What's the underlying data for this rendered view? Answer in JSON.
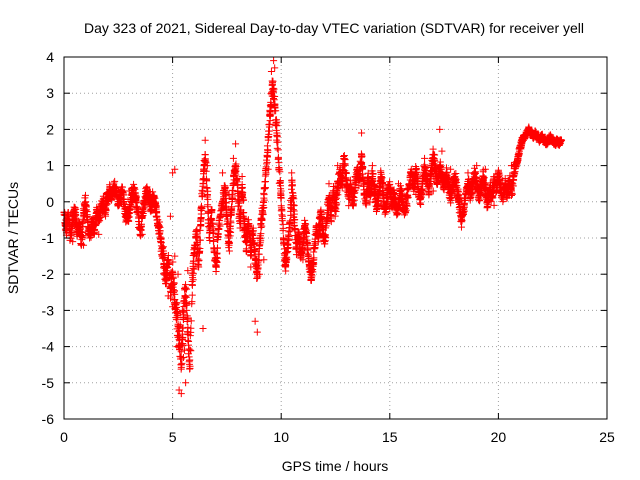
{
  "chart_data": {
    "type": "scatter",
    "title": "Day 323 of 2021, Sidereal Day-to-day VTEC variation (SDTVAR) for receiver yell",
    "xlabel": "GPS time / hours",
    "ylabel": "SDTVAR / TECUs",
    "xlim": [
      0,
      25
    ],
    "ylim": [
      -6,
      4
    ],
    "xticks": [
      0,
      5,
      10,
      15,
      20,
      25
    ],
    "yticks": [
      -6,
      -5,
      -4,
      -3,
      -2,
      -1,
      0,
      1,
      2,
      3,
      4
    ],
    "grid": true,
    "marker": "+",
    "series": [
      {
        "name": "SDTVAR",
        "color": "#ff0000",
        "trace": [
          [
            0.0,
            -0.3
          ],
          [
            0.1,
            -0.8
          ],
          [
            0.2,
            -0.3
          ],
          [
            0.3,
            -1.0
          ],
          [
            0.4,
            -0.5
          ],
          [
            0.5,
            -0.2
          ],
          [
            0.6,
            -0.9
          ],
          [
            0.7,
            -0.6
          ],
          [
            0.8,
            -1.2
          ],
          [
            0.9,
            -0.3
          ],
          [
            1.0,
            0.0
          ],
          [
            1.1,
            -0.7
          ],
          [
            1.2,
            -0.9
          ],
          [
            1.3,
            -0.5
          ],
          [
            1.4,
            -0.8
          ],
          [
            1.5,
            -0.3
          ],
          [
            1.6,
            -0.5
          ],
          [
            1.7,
            -0.2
          ],
          [
            1.8,
            0.0
          ],
          [
            1.9,
            -0.3
          ],
          [
            2.0,
            0.1
          ],
          [
            2.1,
            0.3
          ],
          [
            2.2,
            0.2
          ],
          [
            2.3,
            0.4
          ],
          [
            2.4,
            0.3
          ],
          [
            2.5,
            -0.1
          ],
          [
            2.6,
            0.2
          ],
          [
            2.7,
            0.3
          ],
          [
            2.8,
            -0.2
          ],
          [
            2.9,
            -0.5
          ],
          [
            3.0,
            -0.3
          ],
          [
            3.1,
            0.1
          ],
          [
            3.2,
            0.3
          ],
          [
            3.3,
            0.1
          ],
          [
            3.4,
            -0.3
          ],
          [
            3.5,
            -0.9
          ],
          [
            3.6,
            -0.4
          ],
          [
            3.7,
            0.0
          ],
          [
            3.8,
            0.3
          ],
          [
            3.9,
            0.2
          ],
          [
            4.0,
            -0.2
          ],
          [
            4.1,
            0.1
          ],
          [
            4.2,
            -0.1
          ],
          [
            4.3,
            -0.5
          ],
          [
            4.4,
            -0.8
          ],
          [
            4.5,
            -1.3
          ],
          [
            4.6,
            -1.7
          ],
          [
            4.7,
            -2.1
          ],
          [
            4.8,
            -1.6
          ],
          [
            4.9,
            -2.4
          ],
          [
            5.0,
            -2.0
          ],
          [
            5.1,
            -2.7
          ],
          [
            5.2,
            -3.2
          ],
          [
            5.3,
            -3.8
          ],
          [
            5.4,
            -4.5
          ],
          [
            5.5,
            -3.2
          ],
          [
            5.6,
            -2.4
          ],
          [
            5.7,
            -3.6
          ],
          [
            5.8,
            -4.6
          ],
          [
            5.9,
            -2.2
          ],
          [
            6.0,
            -1.4
          ],
          [
            6.1,
            -0.8
          ],
          [
            6.2,
            -1.8
          ],
          [
            6.3,
            -0.5
          ],
          [
            6.4,
            0.5
          ],
          [
            6.5,
            1.3
          ],
          [
            6.6,
            0.2
          ],
          [
            6.7,
            -1.0
          ],
          [
            6.8,
            -0.3
          ],
          [
            6.9,
            -1.3
          ],
          [
            7.0,
            -1.8
          ],
          [
            7.1,
            -0.9
          ],
          [
            7.2,
            -0.4
          ],
          [
            7.3,
            0.0
          ],
          [
            7.4,
            0.4
          ],
          [
            7.5,
            -0.4
          ],
          [
            7.6,
            -1.2
          ],
          [
            7.7,
            -0.3
          ],
          [
            7.8,
            0.5
          ],
          [
            7.9,
            1.0
          ],
          [
            8.0,
            0.3
          ],
          [
            8.1,
            -0.6
          ],
          [
            8.2,
            0.4
          ],
          [
            8.3,
            -0.6
          ],
          [
            8.4,
            -1.3
          ],
          [
            8.5,
            -0.6
          ],
          [
            8.6,
            -1.4
          ],
          [
            8.7,
            -0.8
          ],
          [
            8.8,
            -1.5
          ],
          [
            8.9,
            -2.1
          ],
          [
            9.0,
            -1.2
          ],
          [
            9.1,
            -0.5
          ],
          [
            9.2,
            0.1
          ],
          [
            9.3,
            0.8
          ],
          [
            9.4,
            1.8
          ],
          [
            9.5,
            2.4
          ],
          [
            9.6,
            3.3
          ],
          [
            9.7,
            2.7
          ],
          [
            9.8,
            1.9
          ],
          [
            9.9,
            0.9
          ],
          [
            10.0,
            0.1
          ],
          [
            10.1,
            -1.0
          ],
          [
            10.2,
            -1.8
          ],
          [
            10.3,
            -1.2
          ],
          [
            10.4,
            -0.6
          ],
          [
            10.5,
            0.6
          ],
          [
            10.6,
            -0.5
          ],
          [
            10.7,
            -1.3
          ],
          [
            10.8,
            -0.9
          ],
          [
            10.9,
            -1.5
          ],
          [
            11.0,
            -1.1
          ],
          [
            11.1,
            -0.6
          ],
          [
            11.2,
            -1.2
          ],
          [
            11.3,
            -1.8
          ],
          [
            11.4,
            -2.1
          ],
          [
            11.5,
            -1.6
          ],
          [
            11.6,
            -0.7
          ],
          [
            11.7,
            -1.0
          ],
          [
            11.8,
            -0.3
          ],
          [
            11.9,
            -0.7
          ],
          [
            12.0,
            -1.1
          ],
          [
            12.1,
            -0.5
          ],
          [
            12.2,
            0.1
          ],
          [
            12.3,
            -0.4
          ],
          [
            12.4,
            0.3
          ],
          [
            12.5,
            -0.2
          ],
          [
            12.6,
            0.4
          ],
          [
            12.7,
            0.8
          ],
          [
            12.8,
            0.5
          ],
          [
            12.9,
            1.2
          ],
          [
            13.0,
            0.6
          ],
          [
            13.1,
            0.1
          ],
          [
            13.2,
            0.5
          ],
          [
            13.3,
            -0.1
          ],
          [
            13.4,
            0.4
          ],
          [
            13.5,
            0.9
          ],
          [
            13.6,
            0.6
          ],
          [
            13.7,
            1.3
          ],
          [
            13.8,
            0.5
          ],
          [
            13.9,
            0.0
          ],
          [
            14.0,
            0.6
          ],
          [
            14.1,
            0.2
          ],
          [
            14.2,
            0.7
          ],
          [
            14.3,
            0.3
          ],
          [
            14.4,
            -0.2
          ],
          [
            14.5,
            0.2
          ],
          [
            14.6,
            0.7
          ],
          [
            14.7,
            0.2
          ],
          [
            14.8,
            -0.3
          ],
          [
            14.9,
            0.2
          ],
          [
            15.0,
            0.4
          ],
          [
            15.1,
            -0.1
          ],
          [
            15.2,
            0.2
          ],
          [
            15.3,
            -0.3
          ],
          [
            15.4,
            -0.1
          ],
          [
            15.5,
            0.3
          ],
          [
            15.6,
            0.0
          ],
          [
            15.7,
            -0.3
          ],
          [
            15.8,
            0.1
          ],
          [
            15.9,
            0.5
          ],
          [
            16.0,
            0.8
          ],
          [
            16.1,
            0.4
          ],
          [
            16.2,
            0.9
          ],
          [
            16.3,
            0.5
          ],
          [
            16.4,
            0.1
          ],
          [
            16.5,
            0.5
          ],
          [
            16.6,
            0.9
          ],
          [
            16.7,
            0.6
          ],
          [
            16.8,
            0.3
          ],
          [
            16.9,
            0.8
          ],
          [
            17.0,
            1.3
          ],
          [
            17.1,
            0.9
          ],
          [
            17.2,
            0.5
          ],
          [
            17.3,
            1.0
          ],
          [
            17.4,
            0.7
          ],
          [
            17.5,
            0.4
          ],
          [
            17.6,
            0.8
          ],
          [
            17.7,
            0.5
          ],
          [
            17.8,
            0.1
          ],
          [
            17.9,
            0.4
          ],
          [
            18.0,
            0.7
          ],
          [
            18.1,
            0.3
          ],
          [
            18.2,
            0.0
          ],
          [
            18.3,
            -0.5
          ],
          [
            18.4,
            -0.2
          ],
          [
            18.5,
            0.2
          ],
          [
            18.6,
            0.5
          ],
          [
            18.7,
            0.2
          ],
          [
            18.8,
            0.4
          ],
          [
            18.9,
            0.8
          ],
          [
            19.0,
            0.5
          ],
          [
            19.1,
            0.1
          ],
          [
            19.2,
            0.4
          ],
          [
            19.3,
            0.7
          ],
          [
            19.4,
            0.3
          ],
          [
            19.5,
            0.0
          ],
          [
            19.6,
            0.4
          ],
          [
            19.7,
            0.1
          ],
          [
            19.8,
            0.6
          ],
          [
            19.9,
            0.3
          ],
          [
            20.0,
            0.7
          ],
          [
            20.1,
            0.4
          ],
          [
            20.2,
            0.1
          ],
          [
            20.3,
            0.5
          ],
          [
            20.4,
            0.2
          ],
          [
            20.5,
            0.6
          ],
          [
            20.6,
            0.3
          ],
          [
            20.7,
            0.7
          ],
          [
            20.8,
            1.0
          ],
          [
            20.9,
            1.2
          ],
          [
            21.0,
            1.5
          ],
          [
            21.1,
            1.7
          ],
          [
            21.2,
            1.8
          ],
          [
            21.3,
            1.9
          ],
          [
            21.4,
            2.0
          ],
          [
            21.5,
            1.9
          ],
          [
            21.6,
            1.8
          ],
          [
            21.7,
            1.9
          ],
          [
            21.8,
            1.8
          ],
          [
            21.9,
            1.7
          ],
          [
            22.0,
            1.8
          ],
          [
            22.1,
            1.7
          ],
          [
            22.2,
            1.6
          ],
          [
            22.3,
            1.7
          ],
          [
            22.4,
            1.8
          ],
          [
            22.5,
            1.7
          ],
          [
            22.6,
            1.6
          ],
          [
            22.7,
            1.7
          ],
          [
            22.8,
            1.6
          ],
          [
            22.9,
            1.7
          ]
        ],
        "extra_points": [
          [
            5.3,
            -5.2
          ],
          [
            5.4,
            -5.3
          ],
          [
            5.6,
            -5.0
          ],
          [
            5.5,
            -4.3
          ],
          [
            5.2,
            -4.0
          ],
          [
            6.4,
            -3.5
          ],
          [
            8.8,
            -3.3
          ],
          [
            8.9,
            -3.6
          ],
          [
            9.65,
            3.9
          ],
          [
            9.55,
            3.6
          ],
          [
            9.7,
            3.7
          ],
          [
            6.5,
            1.7
          ],
          [
            7.9,
            1.6
          ],
          [
            17.3,
            2.0
          ],
          [
            13.7,
            1.9
          ],
          [
            18.3,
            -0.7
          ],
          [
            5.0,
            0.8
          ],
          [
            5.1,
            0.9
          ],
          [
            4.9,
            -0.4
          ],
          [
            4.7,
            -1.9
          ],
          [
            4.8,
            -2.6
          ],
          [
            5.0,
            -2.9
          ],
          [
            5.2,
            -2.8
          ],
          [
            5.35,
            -3.4
          ],
          [
            5.45,
            -3.0
          ],
          [
            5.55,
            -4.1
          ],
          [
            5.65,
            -3.0
          ],
          [
            5.25,
            -2.0
          ],
          [
            5.1,
            -1.5
          ],
          [
            5.7,
            -1.9
          ],
          [
            6.1,
            -1.5
          ],
          [
            6.3,
            -0.2
          ],
          [
            6.6,
            1.0
          ],
          [
            6.9,
            -0.8
          ],
          [
            7.3,
            0.8
          ],
          [
            7.6,
            0.2
          ],
          [
            7.8,
            1.2
          ],
          [
            8.2,
            0.7
          ],
          [
            8.4,
            -0.9
          ],
          [
            8.6,
            -1.8
          ],
          [
            9.0,
            -2.0
          ],
          [
            9.2,
            -1.6
          ],
          [
            9.4,
            0.9
          ],
          [
            9.8,
            2.2
          ],
          [
            10.2,
            -1.4
          ],
          [
            10.6,
            -0.1
          ],
          [
            11.0,
            -1.6
          ],
          [
            11.4,
            -1.9
          ],
          [
            11.8,
            -0.9
          ],
          [
            12.2,
            0.5
          ],
          [
            12.6,
            1.0
          ],
          [
            13.0,
            0.3
          ],
          [
            13.4,
            0.7
          ],
          [
            14.2,
            1.0
          ],
          [
            14.6,
            -0.1
          ],
          [
            15.0,
            -0.2
          ],
          [
            15.4,
            0.5
          ],
          [
            16.2,
            0.2
          ],
          [
            16.6,
            1.2
          ],
          [
            17.0,
            0.3
          ],
          [
            17.4,
            1.4
          ],
          [
            17.8,
            0.9
          ],
          [
            18.2,
            -0.3
          ],
          [
            18.6,
            0.8
          ],
          [
            19.0,
            1.0
          ],
          [
            19.4,
            0.9
          ],
          [
            19.8,
            -0.1
          ],
          [
            20.2,
            0.6
          ],
          [
            20.6,
            1.0
          ],
          [
            3.0,
            0.3
          ],
          [
            3.6,
            -0.9
          ],
          [
            2.6,
            0.0
          ],
          [
            1.6,
            -0.9
          ],
          [
            0.4,
            -1.1
          ],
          [
            0.9,
            -1.2
          ]
        ]
      }
    ]
  }
}
